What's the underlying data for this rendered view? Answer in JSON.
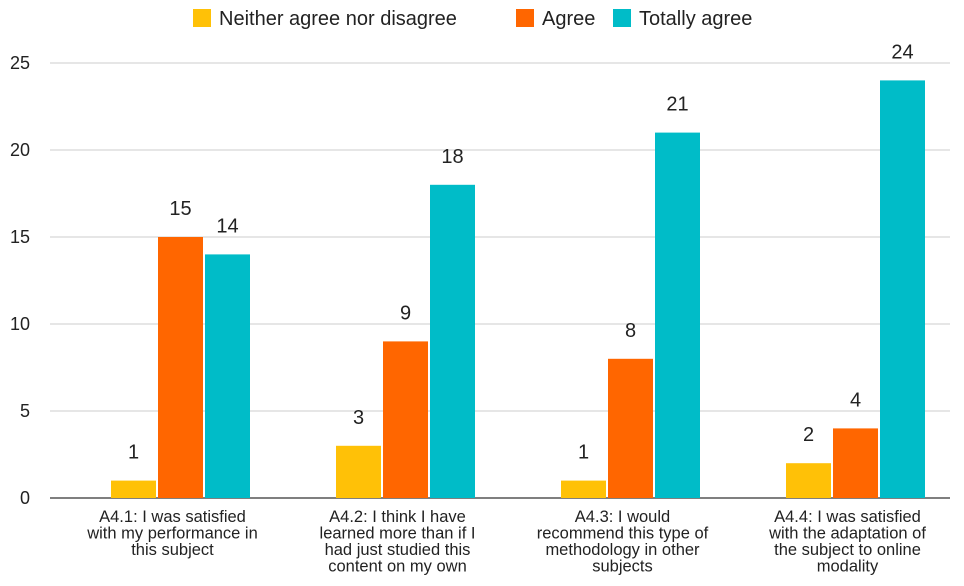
{
  "chart_data": {
    "type": "bar",
    "categories": [
      [
        "A4.1: I was satisfied",
        "with my performance in",
        "this subject"
      ],
      [
        "A4.2: I think I have",
        "learned more than if I",
        "had just studied this",
        "content on my own"
      ],
      [
        "A4.3: I would",
        "recommend this type of",
        "methodology in other",
        "subjects"
      ],
      [
        "A4.4: I was satisfied",
        "with the adaptation of",
        "the subject to online",
        "modality"
      ]
    ],
    "series": [
      {
        "name": "Neither agree nor disagree",
        "color": "#FFC107",
        "values": [
          1,
          3,
          1,
          2
        ]
      },
      {
        "name": "Agree",
        "color": "#FF6600",
        "values": [
          15,
          9,
          8,
          4
        ]
      },
      {
        "name": "Totally agree",
        "color": "#00BCC8",
        "values": [
          14,
          18,
          21,
          24
        ]
      }
    ],
    "yticks": [
      0,
      5,
      10,
      15,
      20,
      25
    ],
    "ylim": [
      0,
      25
    ],
    "legend_position": "top",
    "gridlines": true
  }
}
